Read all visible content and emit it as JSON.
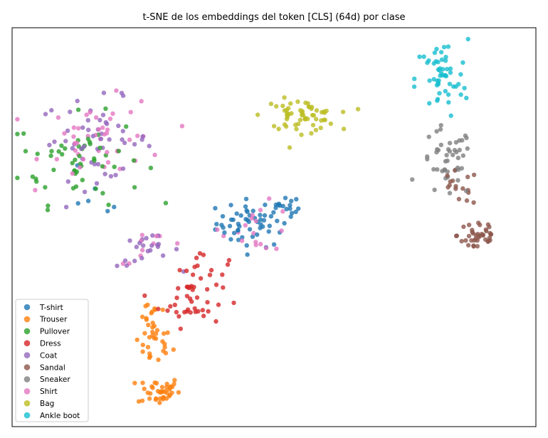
{
  "chart_data": {
    "type": "scatter",
    "title": "t-SNE de los embeddings del token [CLS] (64d) por clase",
    "xlabel": "",
    "ylabel": "",
    "xlim": [
      0,
      100
    ],
    "ylim": [
      0,
      100
    ],
    "axis_ticks": false,
    "grid": false,
    "legend_position": "lower-left",
    "series": [
      {
        "name": "T-shirt",
        "color": "#1f77b4",
        "clusters": [
          {
            "cx": 46,
            "cy": 51,
            "sx": 3.5,
            "sy": 3.0,
            "n": 55
          },
          {
            "cx": 52,
            "cy": 54,
            "sx": 1.5,
            "sy": 2.0,
            "n": 15
          },
          {
            "cx": 15,
            "cy": 58,
            "sx": 4.0,
            "sy": 3.0,
            "n": 6
          }
        ]
      },
      {
        "name": "Trouser",
        "color": "#ff7f0e",
        "clusters": [
          {
            "cx": 27,
            "cy": 21,
            "sx": 1.8,
            "sy": 3.0,
            "n": 30
          },
          {
            "cx": 28,
            "cy": 9,
            "sx": 2.0,
            "sy": 1.8,
            "n": 40
          },
          {
            "cx": 27,
            "cy": 29,
            "sx": 1.5,
            "sy": 1.5,
            "n": 8
          }
        ]
      },
      {
        "name": "Pullover",
        "color": "#2ca02c",
        "clusters": [
          {
            "cx": 13,
            "cy": 67,
            "sx": 6.0,
            "sy": 5.5,
            "n": 55
          }
        ]
      },
      {
        "name": "Dress",
        "color": "#d62728",
        "clusters": [
          {
            "cx": 34,
            "cy": 32,
            "sx": 3.0,
            "sy": 3.5,
            "n": 40
          },
          {
            "cx": 37,
            "cy": 40,
            "sx": 2.5,
            "sy": 2.0,
            "n": 12
          }
        ]
      },
      {
        "name": "Coat",
        "color": "#9467bd",
        "clusters": [
          {
            "cx": 16,
            "cy": 72,
            "sx": 5.5,
            "sy": 5.0,
            "n": 50
          },
          {
            "cx": 26,
            "cy": 44,
            "sx": 3.0,
            "sy": 2.0,
            "n": 22
          }
        ]
      },
      {
        "name": "Sandal",
        "color": "#8c564b",
        "clusters": [
          {
            "cx": 89,
            "cy": 48,
            "sx": 2.0,
            "sy": 2.5,
            "n": 40
          },
          {
            "cx": 85,
            "cy": 60,
            "sx": 2.0,
            "sy": 2.0,
            "n": 15
          }
        ]
      },
      {
        "name": "Sneaker",
        "color": "#7f7f7f",
        "clusters": [
          {
            "cx": 83,
            "cy": 66,
            "sx": 2.5,
            "sy": 4.5,
            "n": 45
          }
        ]
      },
      {
        "name": "Shirt",
        "color": "#e377c2",
        "clusters": [
          {
            "cx": 18,
            "cy": 72,
            "sx": 6.0,
            "sy": 5.0,
            "n": 45
          },
          {
            "cx": 47,
            "cy": 50,
            "sx": 3.5,
            "sy": 3.0,
            "n": 18
          },
          {
            "cx": 27,
            "cy": 45,
            "sx": 3.5,
            "sy": 2.0,
            "n": 10
          }
        ]
      },
      {
        "name": "Bag",
        "color": "#bcbd22",
        "clusters": [
          {
            "cx": 55,
            "cy": 78,
            "sx": 3.5,
            "sy": 2.0,
            "n": 60
          }
        ]
      },
      {
        "name": "Ankle boot",
        "color": "#17becf",
        "clusters": [
          {
            "cx": 82,
            "cy": 87,
            "sx": 2.5,
            "sy": 5.0,
            "n": 55
          }
        ]
      }
    ]
  }
}
